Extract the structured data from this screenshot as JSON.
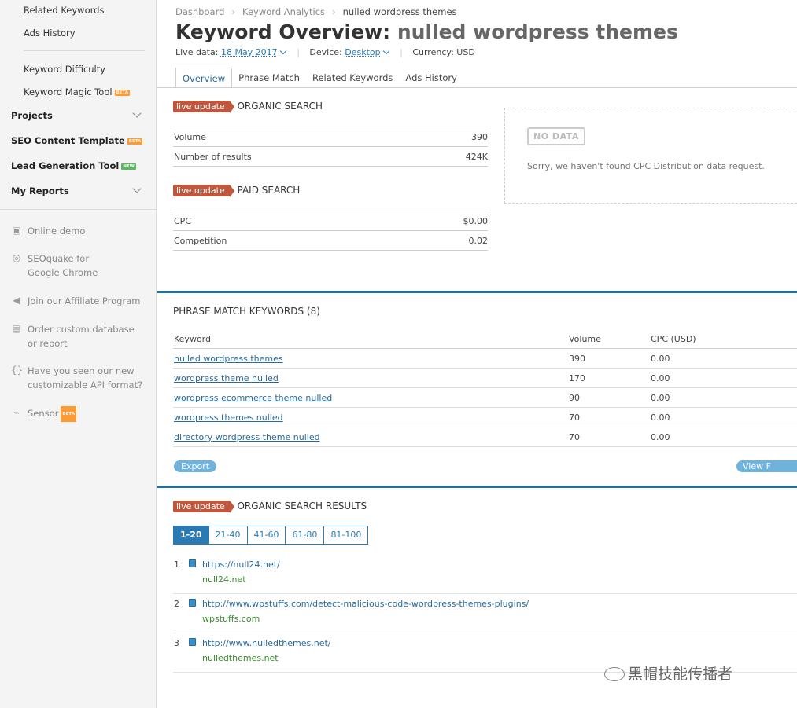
{
  "sidebar": {
    "items": [
      {
        "label": "Related Keywords"
      },
      {
        "label": "Ads History"
      },
      {
        "label": "Keyword Difficulty"
      },
      {
        "label": "Keyword Magic Tool",
        "badge": "BETA"
      },
      {
        "label": "Projects"
      },
      {
        "label": "SEO Content Template",
        "badge": "BETA"
      },
      {
        "label": "Lead Generation Tool",
        "badge": "NEW"
      },
      {
        "label": "My Reports"
      }
    ],
    "extras": [
      {
        "label": "Online demo",
        "icon": "presentation-icon"
      },
      {
        "label": "SEOquake for Google Chrome",
        "icon": "seoquake-icon"
      },
      {
        "label": "Join our Affiliate Program",
        "icon": "megaphone-icon"
      },
      {
        "label": "Order custom database or report",
        "icon": "document-icon"
      },
      {
        "label": "Have you seen our new customizable API format?",
        "icon": "braces-icon"
      },
      {
        "label": "Sensor",
        "icon": "pulse-icon",
        "badge": "BETA"
      }
    ]
  },
  "breadcrumb": [
    "Dashboard",
    "Keyword Analytics",
    "nulled wordpress themes"
  ],
  "title": {
    "prefix": "Keyword Overview:",
    "keyword": "nulled wordpress themes"
  },
  "meta": {
    "live_label": "Live data:",
    "date": "18 May 2017",
    "device_label": "Device:",
    "device": "Desktop",
    "currency": "Currency: USD"
  },
  "tabs": [
    "Overview",
    "Phrase Match",
    "Related Keywords",
    "Ads History"
  ],
  "live_update": "live update",
  "organic": {
    "title": "ORGANIC SEARCH",
    "rows": [
      {
        "label": "Volume",
        "value": "390"
      },
      {
        "label": "Number of results",
        "value": "424K"
      }
    ]
  },
  "paid": {
    "title": "PAID SEARCH",
    "rows": [
      {
        "label": "CPC",
        "value": "$0.00"
      },
      {
        "label": "Competition",
        "value": "0.02"
      }
    ]
  },
  "cpc_distribution": {
    "logo": "NO DATA",
    "message": "Sorry, we haven't found CPC Distribution data request."
  },
  "phrase_match": {
    "title": "PHRASE MATCH KEYWORDS (8)",
    "columns": [
      "Keyword",
      "Volume",
      "CPC (USD)"
    ],
    "rows": [
      {
        "keyword": "nulled wordpress themes",
        "volume": "390",
        "cpc": "0.00"
      },
      {
        "keyword": "wordpress theme nulled",
        "volume": "170",
        "cpc": "0.00"
      },
      {
        "keyword": "wordpress ecommerce theme nulled",
        "volume": "90",
        "cpc": "0.00"
      },
      {
        "keyword": "wordpress themes nulled",
        "volume": "70",
        "cpc": "0.00"
      },
      {
        "keyword": "directory wordpress theme nulled",
        "volume": "70",
        "cpc": "0.00"
      }
    ],
    "export_label": "Export",
    "view_label": "View F"
  },
  "organic_results": {
    "title": "ORGANIC SEARCH RESULTS",
    "pages": [
      "1-20",
      "21-40",
      "41-60",
      "61-80",
      "81-100"
    ],
    "results": [
      {
        "num": "1",
        "url": "https://null24.net/",
        "domain": "null24.net"
      },
      {
        "num": "2",
        "url": "http://www.wpstuffs.com/detect-malicious-code-wordpress-themes-plugins/",
        "domain": "wpstuffs.com"
      },
      {
        "num": "3",
        "url": "http://www.nulledthemes.net/",
        "domain": "nulledthemes.net"
      }
    ]
  },
  "watermark": "黑帽技能传播者"
}
